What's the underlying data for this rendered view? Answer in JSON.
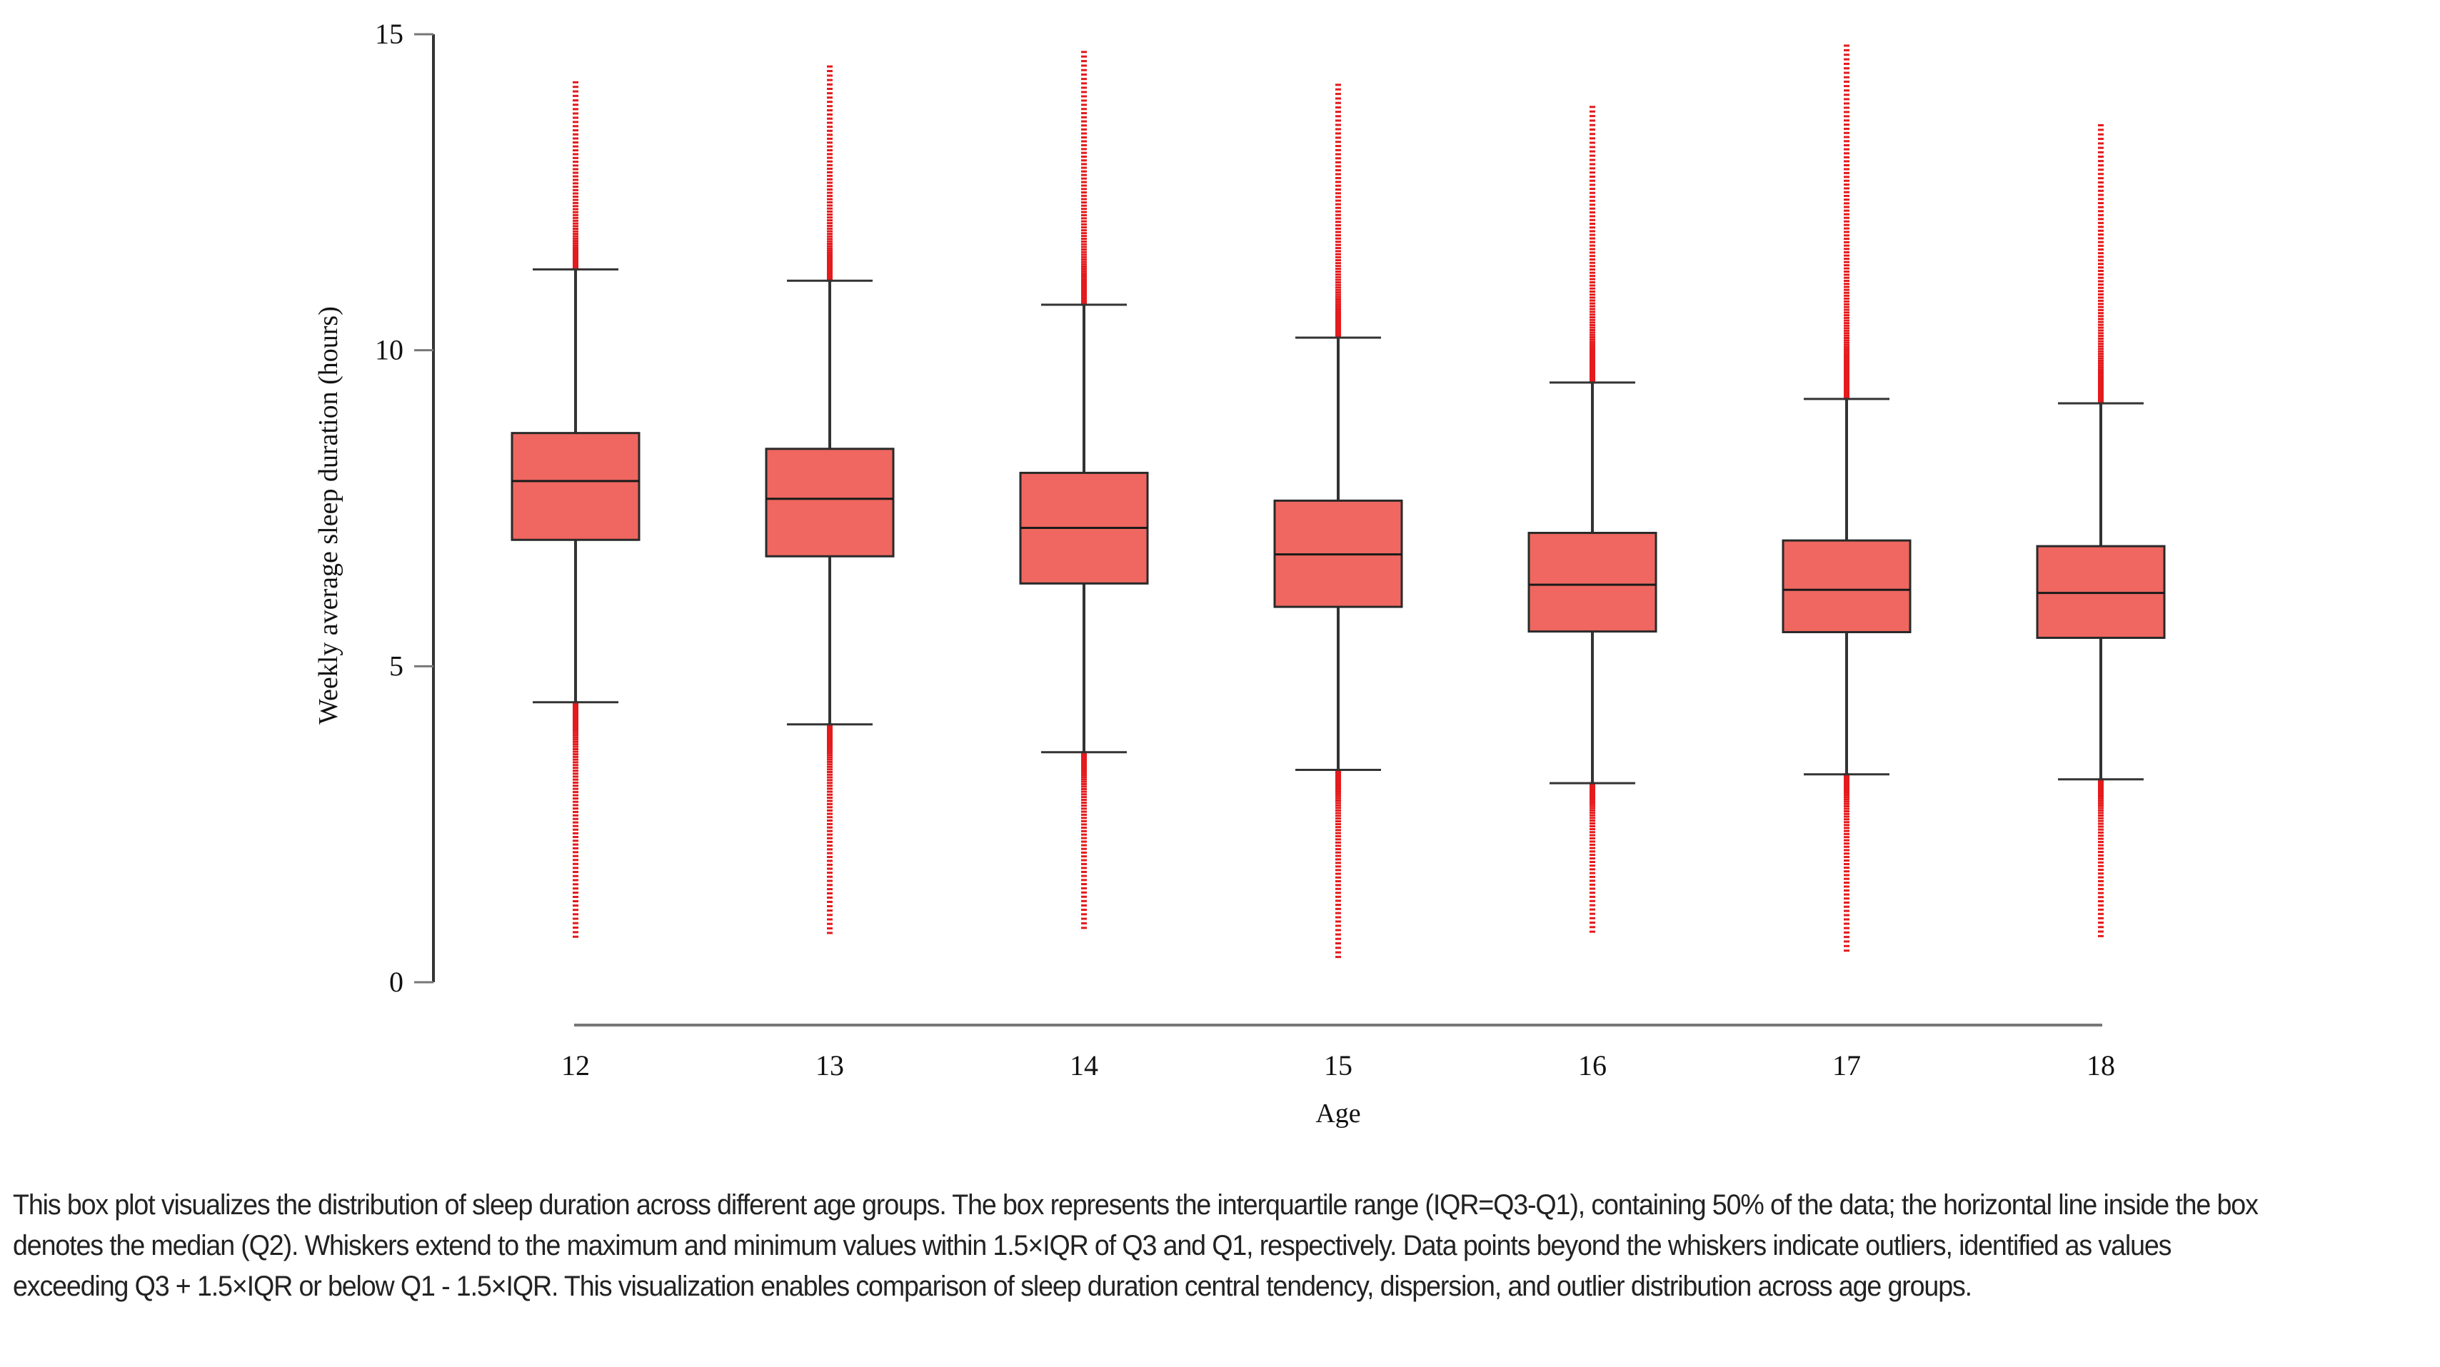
{
  "chart_data": {
    "type": "box",
    "title": "",
    "xlabel": "Age",
    "ylabel": "Weekly average sleep duration  (hours)",
    "ylim": [
      0,
      15
    ],
    "yticks": [
      "0",
      "5",
      "10",
      "15"
    ],
    "yticks_values": [
      0,
      5,
      10,
      15
    ],
    "grid": false,
    "legend": null,
    "colors": {
      "box_fill": "#EF6760",
      "box_stroke": "#2a2a2a",
      "outlier": "#E41A1C",
      "whisker": "#333333",
      "axis": "#333333"
    },
    "categories": [
      "12",
      "13",
      "14",
      "15",
      "16",
      "17",
      "18"
    ],
    "boxes": [
      {
        "category": "12",
        "whisker_low": 4.43,
        "q1": 7.0,
        "median": 7.93,
        "q3": 8.69,
        "whisker_high": 11.28,
        "outlier_min": 0.72,
        "outlier_max": 14.24
      },
      {
        "category": "13",
        "whisker_low": 4.08,
        "q1": 6.74,
        "median": 7.65,
        "q3": 8.44,
        "whisker_high": 11.1,
        "outlier_min": 0.78,
        "outlier_max": 14.49
      },
      {
        "category": "14",
        "whisker_low": 3.64,
        "q1": 6.31,
        "median": 7.19,
        "q3": 8.06,
        "whisker_high": 10.72,
        "outlier_min": 0.86,
        "outlier_max": 14.72
      },
      {
        "category": "15",
        "whisker_low": 3.36,
        "q1": 5.94,
        "median": 6.77,
        "q3": 7.62,
        "whisker_high": 10.2,
        "outlier_min": 0.4,
        "outlier_max": 14.2
      },
      {
        "category": "16",
        "whisker_low": 3.15,
        "q1": 5.55,
        "median": 6.29,
        "q3": 7.11,
        "whisker_high": 9.49,
        "outlier_min": 0.8,
        "outlier_max": 13.85
      },
      {
        "category": "17",
        "whisker_low": 3.29,
        "q1": 5.54,
        "median": 6.21,
        "q3": 6.99,
        "whisker_high": 9.23,
        "outlier_min": 0.5,
        "outlier_max": 14.82
      },
      {
        "category": "18",
        "whisker_low": 3.21,
        "q1": 5.45,
        "median": 6.16,
        "q3": 6.9,
        "whisker_high": 9.16,
        "outlier_min": 0.73,
        "outlier_max": 13.56
      }
    ]
  },
  "caption": "This box plot visualizes the distribution of sleep duration across different age groups. The box represents the interquartile range (IQR=Q3-Q1), containing 50% of the data; the horizontal line inside the box denotes the median (Q2). Whiskers extend to the maximum and minimum values within 1.5×IQR of Q3 and Q1, respectively. Data points beyond the whiskers indicate outliers, identified as values exceeding Q3 + 1.5×IQR or below Q1 - 1.5×IQR. This visualization enables comparison of sleep duration central tendency, dispersion, and outlier distribution across age groups."
}
